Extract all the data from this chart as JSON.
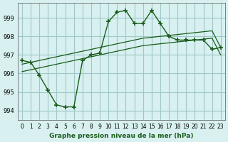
{
  "title": "Graphe pression niveau de la mer (hPa)",
  "bg_color": "#d8f0f0",
  "grid_color": "#a0c8c8",
  "line_color": "#1a5c1a",
  "x_labels": [
    "0",
    "1",
    "2",
    "3",
    "4",
    "5",
    "6",
    "7",
    "8",
    "9",
    "10",
    "11",
    "12",
    "13",
    "14",
    "15",
    "16",
    "17",
    "18",
    "19",
    "20",
    "21",
    "22",
    "23"
  ],
  "ylim": [
    993.5,
    999.8
  ],
  "yticks": [
    994,
    995,
    996,
    997,
    998,
    999
  ],
  "main_series": [
    996.7,
    996.6,
    995.9,
    995.1,
    994.3,
    994.2,
    994.2,
    996.7,
    997.0,
    997.1,
    998.8,
    999.3,
    999.4,
    998.7,
    998.7,
    999.4,
    998.7,
    998.0,
    997.8,
    997.8,
    997.8,
    997.8,
    997.3,
    997.4
  ],
  "trend1": [
    996.5,
    996.6,
    996.7,
    996.8,
    996.9,
    997.0,
    997.1,
    997.2,
    997.3,
    997.4,
    997.5,
    997.6,
    997.7,
    997.8,
    997.9,
    997.95,
    998.0,
    998.05,
    998.1,
    998.15,
    998.2,
    998.25,
    998.3,
    997.4
  ],
  "trend2": [
    996.1,
    996.2,
    996.3,
    996.4,
    996.5,
    996.6,
    996.7,
    996.8,
    996.9,
    997.0,
    997.1,
    997.2,
    997.3,
    997.4,
    997.5,
    997.55,
    997.6,
    997.65,
    997.7,
    997.75,
    997.8,
    997.85,
    997.9,
    997.0
  ]
}
